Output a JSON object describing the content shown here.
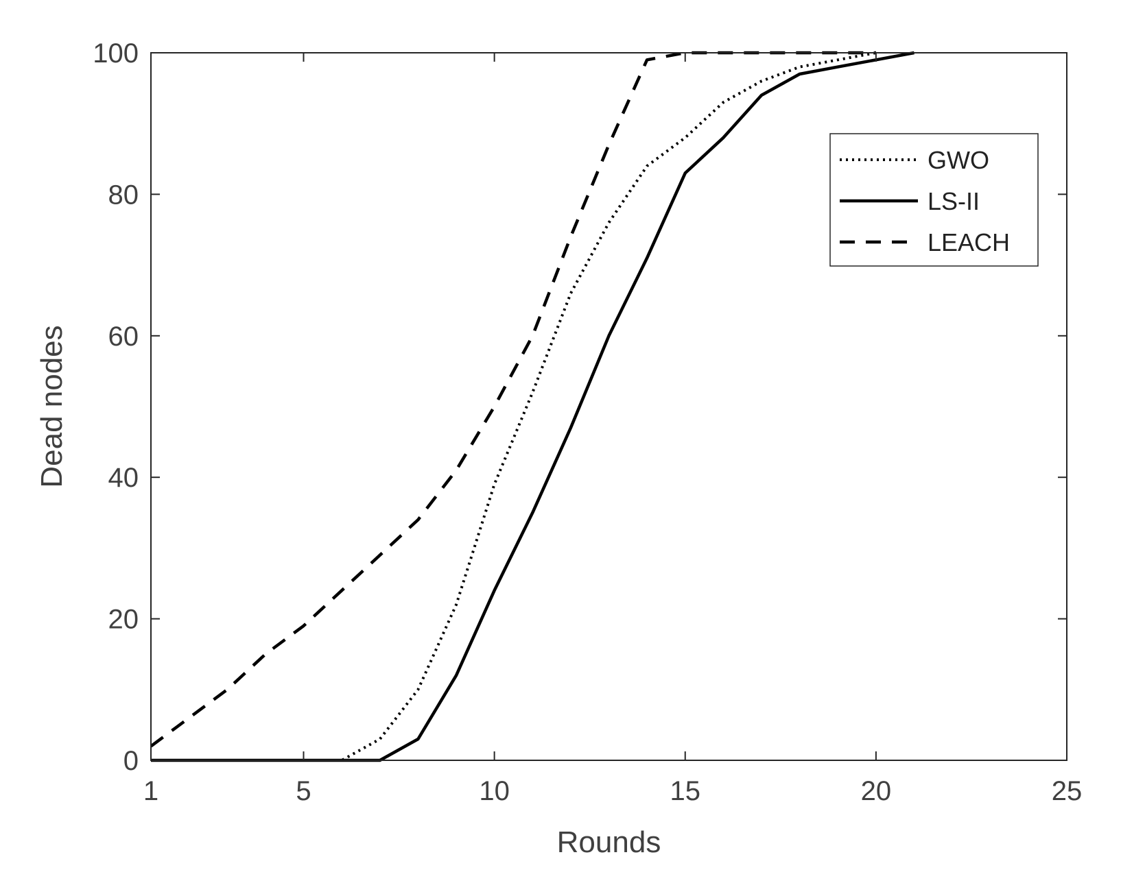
{
  "chart_data": {
    "type": "line",
    "xlabel": "Rounds",
    "ylabel": "Dead nodes",
    "xlim": [
      1,
      25
    ],
    "ylim": [
      0,
      100
    ],
    "xticks": [
      1,
      5,
      10,
      15,
      20,
      25
    ],
    "yticks": [
      0,
      20,
      40,
      60,
      80,
      100
    ],
    "grid": false,
    "legend_position": "top-right",
    "series": [
      {
        "name": "GWO",
        "style": "dotted",
        "color": "#000000",
        "x": [
          1,
          2,
          3,
          4,
          5,
          6,
          7,
          8,
          9,
          10,
          11,
          12,
          13,
          14,
          15,
          16,
          17,
          18,
          19,
          20
        ],
        "y": [
          0,
          0,
          0,
          0,
          0,
          0,
          3,
          10,
          22,
          39,
          52,
          66,
          76,
          84,
          88,
          93,
          96,
          98,
          99,
          100
        ]
      },
      {
        "name": "LS-II",
        "style": "solid",
        "color": "#000000",
        "x": [
          1,
          2,
          3,
          4,
          5,
          6,
          7,
          8,
          9,
          10,
          11,
          12,
          13,
          14,
          15,
          16,
          17,
          18,
          19,
          20,
          21
        ],
        "y": [
          0,
          0,
          0,
          0,
          0,
          0,
          0,
          3,
          12,
          24,
          35,
          47,
          60,
          71,
          83,
          88,
          94,
          97,
          98,
          99,
          100
        ]
      },
      {
        "name": "LEACH",
        "style": "dashed",
        "color": "#000000",
        "x": [
          1,
          2,
          3,
          4,
          5,
          6,
          7,
          8,
          9,
          10,
          11,
          12,
          13,
          14,
          15,
          16,
          17,
          18,
          19,
          20
        ],
        "y": [
          2,
          6,
          10,
          15,
          19,
          24,
          29,
          34,
          41,
          50,
          60,
          74,
          87,
          99,
          100,
          100,
          100,
          100,
          100,
          100
        ]
      }
    ]
  }
}
